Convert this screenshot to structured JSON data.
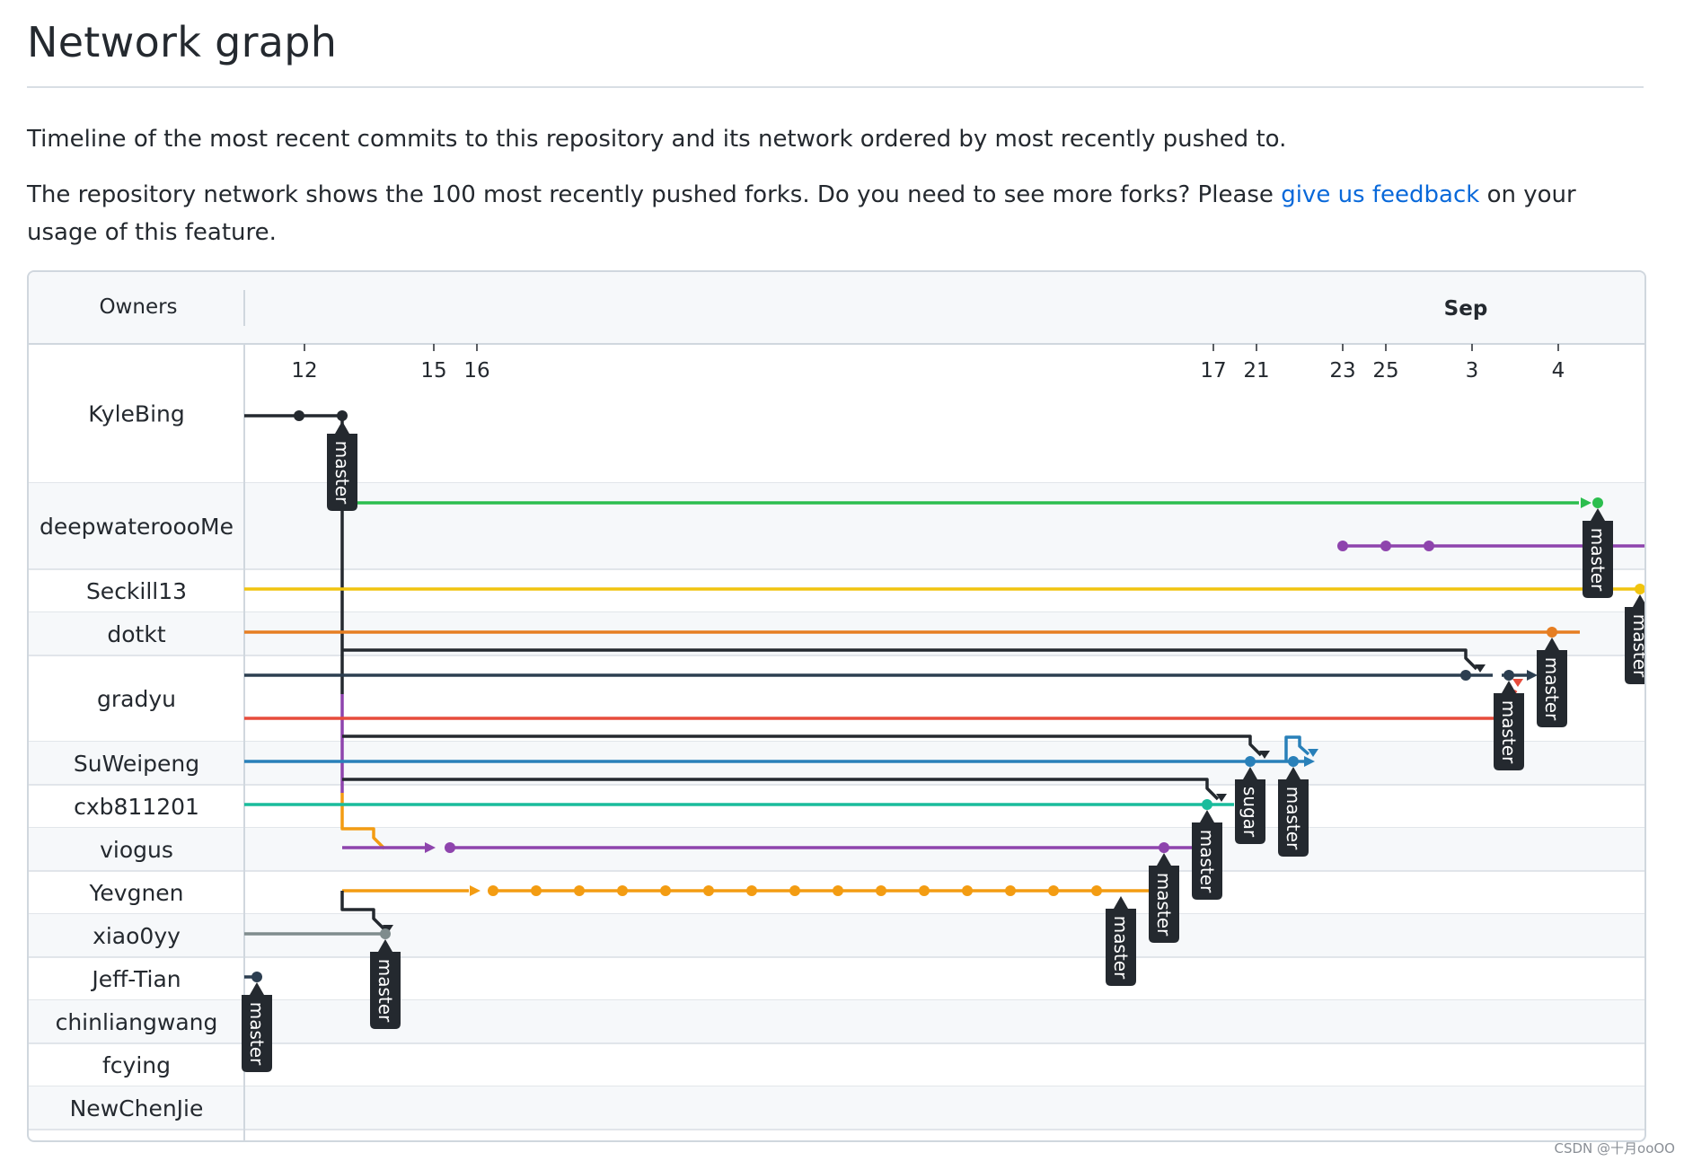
{
  "page": {
    "title": "Network graph",
    "desc1": "Timeline of the most recent commits to this repository and its network ordered by most recently pushed to.",
    "desc2_before": "The repository network shows the 100 most recently pushed forks. Do you need to see more forks? Please ",
    "desc2_link": "give us feedback",
    "desc2_after": " on your usage of this feature."
  },
  "graph": {
    "owners_header": "Owners",
    "month_label": "Sep",
    "days": [
      "12",
      "15",
      "16",
      "17",
      "21",
      "23",
      "25",
      "3",
      "4"
    ],
    "owners": [
      "KyleBing",
      "deepwateroooMe",
      "Seckill13",
      "dotkt",
      "gradyu",
      "SuWeipeng",
      "cxb811201",
      "viogus",
      "Yevgnen",
      "xiao0yy",
      "Jeff-Tian",
      "chinliangwang",
      "fcying",
      "NewChenJie"
    ],
    "labels": {
      "kylebing": "master",
      "deepwater": "master",
      "seckill": "master",
      "dotkt": "master",
      "gradyu": "master",
      "sugar": "sugar",
      "suweipeng": "master",
      "cxb": "master",
      "viogus": "master",
      "yevgnen": "master",
      "xiao0yy": "master",
      "jeff": "master"
    },
    "colors": {
      "black": "#24292f",
      "green": "#2cbe4e",
      "purple": "#8e44ad",
      "yellow": "#f1c40f",
      "orange": "#e67e22",
      "slate": "#2c3e50",
      "red": "#e74c3c",
      "blue": "#2980b9",
      "teal": "#1abc9c",
      "amber": "#f39c12",
      "gray": "#7f8c8d"
    }
  },
  "watermark": "CSDN @十月ooOO"
}
